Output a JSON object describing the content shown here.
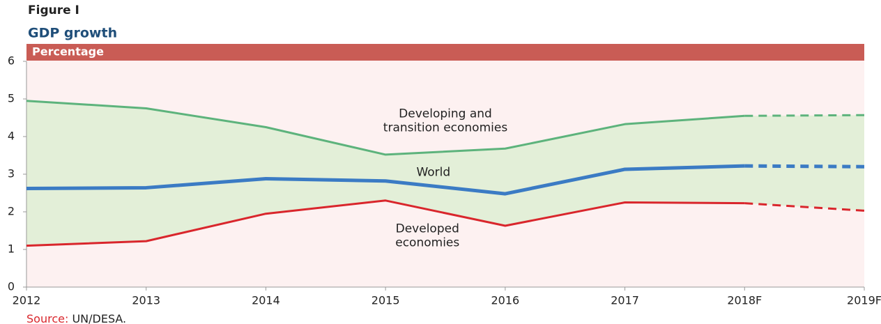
{
  "chart_data": {
    "type": "line",
    "figure_label": "Figure I",
    "title": "GDP growth",
    "y_label": "Percentage",
    "categories": [
      "2012",
      "2013",
      "2014",
      "2015",
      "2016",
      "2017",
      "2018F",
      "2019F"
    ],
    "series": [
      {
        "name": "Developing and transition economies",
        "color": "#5db37c",
        "values": [
          4.95,
          4.75,
          4.25,
          3.52,
          3.68,
          4.33,
          4.55,
          4.57
        ]
      },
      {
        "name": "World",
        "color": "#3b7bc4",
        "values": [
          2.62,
          2.64,
          2.88,
          2.82,
          2.48,
          3.13,
          3.22,
          3.2
        ]
      },
      {
        "name": "Developed economies",
        "color": "#d9262c",
        "values": [
          1.1,
          1.22,
          1.95,
          2.3,
          1.63,
          2.25,
          2.23,
          2.03
        ]
      }
    ],
    "dash_from": 6,
    "band_fill": "#e3efd8",
    "annotations": [
      {
        "lines": [
          "Developing and",
          "transition economies"
        ],
        "at": [
          3.5,
          4.6
        ]
      },
      {
        "lines": [
          "World"
        ],
        "at": [
          3.4,
          3.05
        ]
      },
      {
        "lines": [
          "Developed",
          "economies"
        ],
        "at": [
          3.35,
          1.55
        ]
      }
    ],
    "ylim": [
      0,
      6
    ],
    "yticks": [
      0,
      1,
      2,
      3,
      4,
      5,
      6
    ],
    "source": {
      "label": "Source:",
      "text": "UN/DESA."
    }
  }
}
